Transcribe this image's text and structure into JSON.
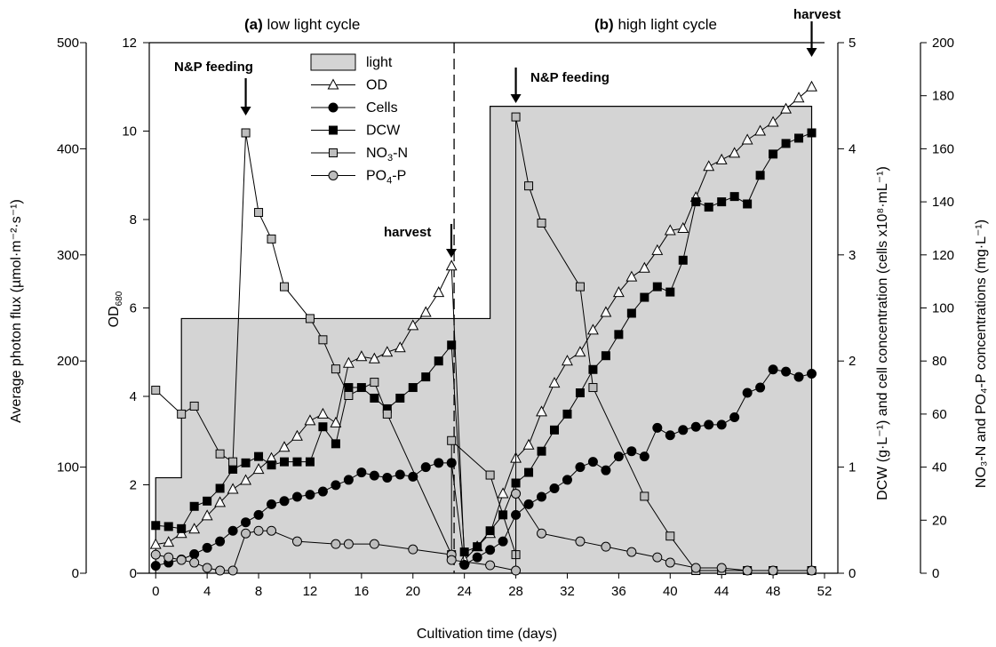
{
  "chart_data": {
    "type": "line",
    "xlabel": "Cultivation time (days)",
    "x_ticks": [
      0,
      4,
      8,
      12,
      16,
      20,
      24,
      28,
      32,
      36,
      40,
      44,
      48,
      52
    ],
    "xlim": [
      -0.5,
      52
    ],
    "left_outer_axis": {
      "label": "Average photon flux (µmol·m⁻²·s⁻¹)",
      "ylim": [
        0,
        500
      ],
      "ticks": [
        0,
        100,
        200,
        300,
        400,
        500
      ]
    },
    "left_inner_axis": {
      "label": "OD",
      "label_sub": "680",
      "ylim": [
        0,
        12
      ],
      "ticks": [
        0,
        2,
        4,
        6,
        8,
        10,
        12
      ]
    },
    "right_inner_axis": {
      "label": "DCW (g·L⁻¹) and cell concentration (cells x10⁸·mL⁻¹)",
      "ylim": [
        0,
        5
      ],
      "ticks": [
        0,
        1,
        2,
        3,
        4,
        5
      ]
    },
    "right_outer_axis": {
      "label": "NO₃-N and PO₄-P concentrations (mg·L⁻¹)",
      "ylim": [
        0,
        200
      ],
      "ticks": [
        0,
        20,
        40,
        60,
        80,
        100,
        120,
        140,
        160,
        180,
        200
      ]
    },
    "legend": {
      "position": "top-left",
      "entries": [
        "light",
        "OD",
        "Cells",
        "DCW",
        "NO3-N",
        "PO4-P"
      ]
    },
    "annotations": {
      "low_cycle_bold": "(a)",
      "low_cycle_text": " low light cycle",
      "high_cycle_bold": "(b)",
      "high_cycle_text": " high light cycle",
      "feed_1": "N&P feeding",
      "feed_2": "N&P feeding",
      "harvest_1": "harvest",
      "harvest_2": "harvest"
    },
    "divider_x": 23.2,
    "series": [
      {
        "name": "light",
        "axis": "left_outer",
        "style": "area-step",
        "color": "#d4d4d4",
        "x": [
          0,
          2,
          2,
          26,
          26,
          51
        ],
        "y": [
          90,
          90,
          240,
          240,
          440,
          440
        ]
      },
      {
        "name": "OD",
        "axis": "left_inner",
        "marker": "triangle-open",
        "x": [
          0,
          1,
          2,
          3,
          4,
          5,
          6,
          7,
          8,
          9,
          10,
          11,
          12,
          13,
          14,
          15,
          16,
          17,
          18,
          19,
          20,
          21,
          22,
          23,
          24,
          25,
          26,
          27,
          28,
          29,
          30,
          31,
          32,
          33,
          34,
          35,
          36,
          37,
          38,
          39,
          40,
          41,
          42,
          43,
          44,
          45,
          46,
          47,
          48,
          49,
          50,
          51
        ],
        "y": [
          0.65,
          0.7,
          0.9,
          1.0,
          1.3,
          1.6,
          1.9,
          2.1,
          2.35,
          2.6,
          2.85,
          3.1,
          3.45,
          3.6,
          3.4,
          4.75,
          4.9,
          4.85,
          5.0,
          5.1,
          5.6,
          5.9,
          6.35,
          6.95,
          0.3,
          0.6,
          0.9,
          1.8,
          2.6,
          2.9,
          3.65,
          4.3,
          4.8,
          5.0,
          5.5,
          5.9,
          6.35,
          6.7,
          6.9,
          7.3,
          7.75,
          7.8,
          8.5,
          9.2,
          9.35,
          9.5,
          9.8,
          10.0,
          10.2,
          10.5,
          10.75,
          11.0
        ]
      },
      {
        "name": "Cells",
        "axis": "right_inner",
        "marker": "circle-filled",
        "x": [
          0,
          1,
          2,
          3,
          4,
          5,
          6,
          7,
          8,
          9,
          10,
          11,
          12,
          13,
          14,
          15,
          16,
          17,
          18,
          19,
          20,
          21,
          22,
          23,
          24,
          25,
          26,
          27,
          28,
          29,
          30,
          31,
          32,
          33,
          34,
          35,
          36,
          37,
          38,
          39,
          40,
          41,
          42,
          43,
          44,
          45,
          46,
          47,
          48,
          49,
          50,
          51
        ],
        "y": [
          0.07,
          0.1,
          0.13,
          0.18,
          0.24,
          0.3,
          0.4,
          0.48,
          0.55,
          0.65,
          0.68,
          0.72,
          0.74,
          0.77,
          0.83,
          0.88,
          0.95,
          0.92,
          0.9,
          0.93,
          0.91,
          1.0,
          1.04,
          1.04,
          0.08,
          0.15,
          0.22,
          0.3,
          0.55,
          0.65,
          0.72,
          0.8,
          0.88,
          1.0,
          1.05,
          0.97,
          1.1,
          1.15,
          1.1,
          1.37,
          1.3,
          1.35,
          1.38,
          1.4,
          1.4,
          1.47,
          1.7,
          1.75,
          1.92,
          1.9,
          1.85,
          1.88
        ]
      },
      {
        "name": "DCW",
        "axis": "right_inner",
        "marker": "square-filled",
        "x": [
          0,
          1,
          2,
          3,
          4,
          5,
          6,
          7,
          8,
          9,
          10,
          11,
          12,
          13,
          14,
          15,
          16,
          17,
          18,
          19,
          20,
          21,
          22,
          23,
          24,
          25,
          26,
          27,
          28,
          29,
          30,
          31,
          32,
          33,
          34,
          35,
          36,
          37,
          38,
          39,
          40,
          41,
          42,
          43,
          44,
          45,
          46,
          47,
          48,
          49,
          50,
          51
        ],
        "y": [
          0.45,
          0.44,
          0.42,
          0.63,
          0.68,
          0.8,
          0.98,
          1.04,
          1.1,
          1.02,
          1.05,
          1.05,
          1.05,
          1.38,
          1.22,
          1.75,
          1.75,
          1.65,
          1.55,
          1.65,
          1.75,
          1.85,
          2.0,
          2.15,
          0.2,
          0.25,
          0.4,
          0.55,
          0.85,
          0.95,
          1.15,
          1.35,
          1.5,
          1.7,
          1.92,
          2.05,
          2.25,
          2.45,
          2.6,
          2.7,
          2.65,
          2.95,
          3.5,
          3.45,
          3.5,
          3.55,
          3.48,
          3.75,
          3.95,
          4.05,
          4.1,
          4.15
        ]
      },
      {
        "name": "NO3-N",
        "axis": "right_outer",
        "marker": "square-gray",
        "x": [
          0,
          2,
          3,
          5,
          6,
          7,
          8,
          9,
          10,
          12,
          13,
          14,
          15,
          17,
          18,
          23,
          23,
          26,
          28,
          28,
          29,
          30,
          33,
          34,
          38,
          40,
          42,
          44,
          46,
          48,
          51
        ],
        "y": [
          69,
          60,
          63,
          45,
          42,
          166,
          136,
          126,
          108,
          96,
          88,
          77,
          67,
          72,
          60,
          7,
          50,
          37,
          7,
          172,
          146,
          132,
          108,
          70,
          29,
          14,
          1,
          1,
          1,
          1,
          1
        ]
      },
      {
        "name": "PO4-P",
        "axis": "right_outer",
        "marker": "circle-gray",
        "x": [
          0,
          1,
          2,
          3,
          4,
          5,
          6,
          7,
          8,
          9,
          11,
          14,
          15,
          17,
          20,
          23,
          23,
          26,
          28,
          28,
          30,
          33,
          35,
          37,
          39,
          40,
          42,
          44,
          46,
          48,
          51
        ],
        "y": [
          7,
          6,
          5,
          4,
          2,
          1,
          1,
          15,
          16,
          16,
          12,
          11,
          11,
          11,
          9,
          7,
          5,
          3,
          1,
          30,
          15,
          12,
          10,
          8,
          6,
          4,
          2,
          2,
          1,
          1,
          1
        ]
      }
    ]
  }
}
